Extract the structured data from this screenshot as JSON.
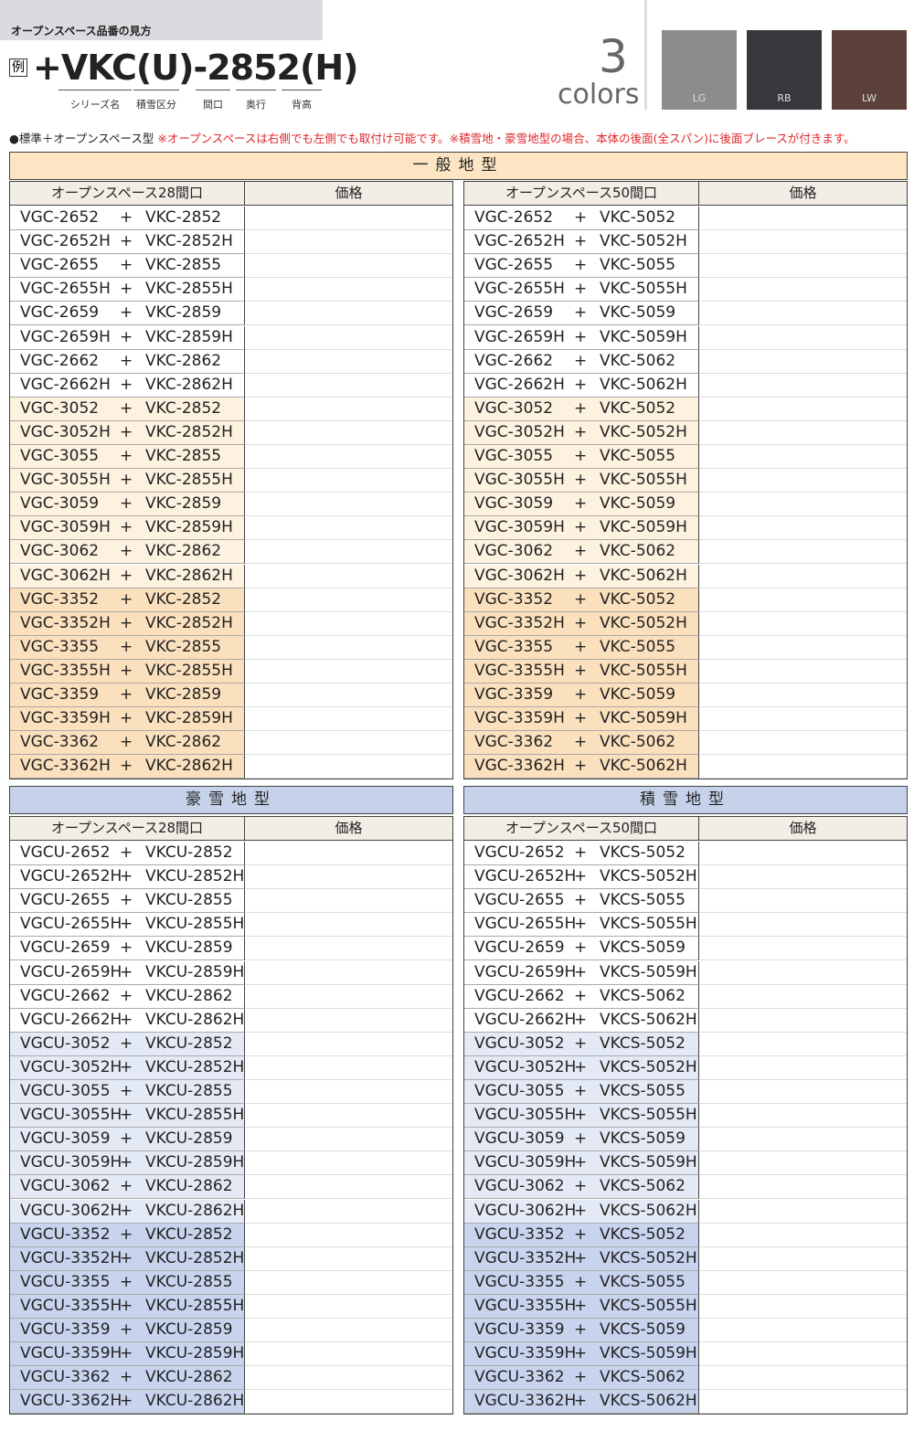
{
  "header": {
    "section_label": "オープンスペース品番の見方",
    "example_mark": "例",
    "example_code": "+VKC(U)-2852(H)",
    "code_parts": [
      "シリーズ名",
      "積雪区分",
      "間口",
      "奥行",
      "背高"
    ],
    "colors_count": "3",
    "colors_word": "colors",
    "swatches": [
      {
        "label": "LG",
        "color": "#8c8c8c"
      },
      {
        "label": "RB",
        "color": "#36383b"
      },
      {
        "label": "LW",
        "color": "#5b4139"
      }
    ]
  },
  "note": {
    "type": "●標準＋オープンスペース型",
    "remark": "※オープンスペースは右側でも左側でも取付け可能です。※積雪地・豪雪地型の場合、本体の後面(全スパン)に後面ブレースが付きます。"
  },
  "sections": [
    {
      "title": "一般地型",
      "tables": [
        {
          "columns": [
            "オープンスペース28間口",
            "価格"
          ],
          "joiner": "+",
          "rows": [
            [
              "VGC-2652",
              "VKC-2852"
            ],
            [
              "VGC-2652H",
              "VKC-2852H"
            ],
            [
              "VGC-2655",
              "VKC-2855"
            ],
            [
              "VGC-2655H",
              "VKC-2855H"
            ],
            [
              "VGC-2659",
              "VKC-2859"
            ],
            [
              "VGC-2659H",
              "VKC-2859H"
            ],
            [
              "VGC-2662",
              "VKC-2862"
            ],
            [
              "VGC-2662H",
              "VKC-2862H"
            ],
            [
              "VGC-3052",
              "VKC-2852"
            ],
            [
              "VGC-3052H",
              "VKC-2852H"
            ],
            [
              "VGC-3055",
              "VKC-2855"
            ],
            [
              "VGC-3055H",
              "VKC-2855H"
            ],
            [
              "VGC-3059",
              "VKC-2859"
            ],
            [
              "VGC-3059H",
              "VKC-2859H"
            ],
            [
              "VGC-3062",
              "VKC-2862"
            ],
            [
              "VGC-3062H",
              "VKC-2862H"
            ],
            [
              "VGC-3352",
              "VKC-2852"
            ],
            [
              "VGC-3352H",
              "VKC-2852H"
            ],
            [
              "VGC-3355",
              "VKC-2855"
            ],
            [
              "VGC-3355H",
              "VKC-2855H"
            ],
            [
              "VGC-3359",
              "VKC-2859"
            ],
            [
              "VGC-3359H",
              "VKC-2859H"
            ],
            [
              "VGC-3362",
              "VKC-2862"
            ],
            [
              "VGC-3362H",
              "VKC-2862H"
            ]
          ]
        },
        {
          "columns": [
            "オープンスペース50間口",
            "価格"
          ],
          "joiner": "+",
          "rows": [
            [
              "VGC-2652",
              "VKC-5052"
            ],
            [
              "VGC-2652H",
              "VKC-5052H"
            ],
            [
              "VGC-2655",
              "VKC-5055"
            ],
            [
              "VGC-2655H",
              "VKC-5055H"
            ],
            [
              "VGC-2659",
              "VKC-5059"
            ],
            [
              "VGC-2659H",
              "VKC-5059H"
            ],
            [
              "VGC-2662",
              "VKC-5062"
            ],
            [
              "VGC-2662H",
              "VKC-5062H"
            ],
            [
              "VGC-3052",
              "VKC-5052"
            ],
            [
              "VGC-3052H",
              "VKC-5052H"
            ],
            [
              "VGC-3055",
              "VKC-5055"
            ],
            [
              "VGC-3055H",
              "VKC-5055H"
            ],
            [
              "VGC-3059",
              "VKC-5059"
            ],
            [
              "VGC-3059H",
              "VKC-5059H"
            ],
            [
              "VGC-3062",
              "VKC-5062"
            ],
            [
              "VGC-3062H",
              "VKC-5062H"
            ],
            [
              "VGC-3352",
              "VKC-5052"
            ],
            [
              "VGC-3352H",
              "VKC-5052H"
            ],
            [
              "VGC-3355",
              "VKC-5055"
            ],
            [
              "VGC-3355H",
              "VKC-5055H"
            ],
            [
              "VGC-3359",
              "VKC-5059"
            ],
            [
              "VGC-3359H",
              "VKC-5059H"
            ],
            [
              "VGC-3362",
              "VKC-5062"
            ],
            [
              "VGC-3362H",
              "VKC-5062H"
            ]
          ]
        }
      ]
    },
    {
      "title": "豪雪地型",
      "tables": [
        {
          "columns": [
            "オープンスペース28間口",
            "価格"
          ],
          "joiner": "+",
          "rows": [
            [
              "VGCU-2652",
              "VKCU-2852"
            ],
            [
              "VGCU-2652H",
              "VKCU-2852H"
            ],
            [
              "VGCU-2655",
              "VKCU-2855"
            ],
            [
              "VGCU-2655H",
              "VKCU-2855H"
            ],
            [
              "VGCU-2659",
              "VKCU-2859"
            ],
            [
              "VGCU-2659H",
              "VKCU-2859H"
            ],
            [
              "VGCU-2662",
              "VKCU-2862"
            ],
            [
              "VGCU-2662H",
              "VKCU-2862H"
            ],
            [
              "VGCU-3052",
              "VKCU-2852"
            ],
            [
              "VGCU-3052H",
              "VKCU-2852H"
            ],
            [
              "VGCU-3055",
              "VKCU-2855"
            ],
            [
              "VGCU-3055H",
              "VKCU-2855H"
            ],
            [
              "VGCU-3059",
              "VKCU-2859"
            ],
            [
              "VGCU-3059H",
              "VKCU-2859H"
            ],
            [
              "VGCU-3062",
              "VKCU-2862"
            ],
            [
              "VGCU-3062H",
              "VKCU-2862H"
            ],
            [
              "VGCU-3352",
              "VKCU-2852"
            ],
            [
              "VGCU-3352H",
              "VKCU-2852H"
            ],
            [
              "VGCU-3355",
              "VKCU-2855"
            ],
            [
              "VGCU-3355H",
              "VKCU-2855H"
            ],
            [
              "VGCU-3359",
              "VKCU-2859"
            ],
            [
              "VGCU-3359H",
              "VKCU-2859H"
            ],
            [
              "VGCU-3362",
              "VKCU-2862"
            ],
            [
              "VGCU-3362H",
              "VKCU-2862H"
            ]
          ]
        }
      ]
    },
    {
      "title": "積雪地型",
      "tables": [
        {
          "columns": [
            "オープンスペース50間口",
            "価格"
          ],
          "joiner": "+",
          "rows": [
            [
              "VGCU-2652",
              "VKCS-5052"
            ],
            [
              "VGCU-2652H",
              "VKCS-5052H"
            ],
            [
              "VGCU-2655",
              "VKCS-5055"
            ],
            [
              "VGCU-2655H",
              "VKCS-5055H"
            ],
            [
              "VGCU-2659",
              "VKCS-5059"
            ],
            [
              "VGCU-2659H",
              "VKCS-5059H"
            ],
            [
              "VGCU-2662",
              "VKCS-5062"
            ],
            [
              "VGCU-2662H",
              "VKCS-5062H"
            ],
            [
              "VGCU-3052",
              "VKCS-5052"
            ],
            [
              "VGCU-3052H",
              "VKCS-5052H"
            ],
            [
              "VGCU-3055",
              "VKCS-5055"
            ],
            [
              "VGCU-3055H",
              "VKCS-5055H"
            ],
            [
              "VGCU-3059",
              "VKCS-5059"
            ],
            [
              "VGCU-3059H",
              "VKCS-5059H"
            ],
            [
              "VGCU-3062",
              "VKCS-5062"
            ],
            [
              "VGCU-3062H",
              "VKCS-5062H"
            ],
            [
              "VGCU-3352",
              "VKCS-5052"
            ],
            [
              "VGCU-3352H",
              "VKCS-5052H"
            ],
            [
              "VGCU-3355",
              "VKCS-5055"
            ],
            [
              "VGCU-3355H",
              "VKCS-5055H"
            ],
            [
              "VGCU-3359",
              "VKCS-5059"
            ],
            [
              "VGCU-3359H",
              "VKCS-5059H"
            ],
            [
              "VGCU-3362",
              "VKCS-5062"
            ],
            [
              "VGCU-3362H",
              "VKCS-5062H"
            ]
          ]
        }
      ]
    }
  ]
}
